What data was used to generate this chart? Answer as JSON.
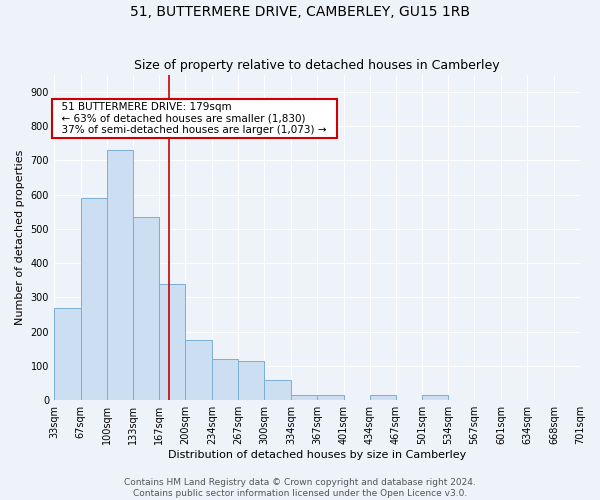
{
  "title": "51, BUTTERMERE DRIVE, CAMBERLEY, GU15 1RB",
  "subtitle": "Size of property relative to detached houses in Camberley",
  "xlabel": "Distribution of detached houses by size in Camberley",
  "ylabel": "Number of detached properties",
  "bin_edges": [
    33,
    67,
    100,
    133,
    167,
    200,
    234,
    267,
    300,
    334,
    367,
    401,
    434,
    467,
    501,
    534,
    567,
    601,
    634,
    668,
    701
  ],
  "bar_heights": [
    270,
    590,
    730,
    535,
    340,
    175,
    120,
    115,
    60,
    15,
    15,
    0,
    15,
    0,
    15,
    0,
    0,
    0,
    0,
    0
  ],
  "bar_color": "#ccdff2",
  "bar_edge_color": "#7bafd4",
  "vline_x": 179,
  "vline_color": "#cc0000",
  "ylim": [
    0,
    950
  ],
  "yticks": [
    0,
    100,
    200,
    300,
    400,
    500,
    600,
    700,
    800,
    900
  ],
  "annotation_text": "  51 BUTTERMERE DRIVE: 179sqm  \n  ← 63% of detached houses are smaller (1,830)  \n  37% of semi-detached houses are larger (1,073) →  ",
  "annotation_box_color": "#ffffff",
  "annotation_box_edge": "#cc0000",
  "footer_text": "Contains HM Land Registry data © Crown copyright and database right 2024.\nContains public sector information licensed under the Open Licence v3.0.",
  "background_color": "#eef2f9",
  "grid_color": "#ffffff",
  "title_fontsize": 10,
  "subtitle_fontsize": 9,
  "axis_label_fontsize": 8,
  "tick_fontsize": 7,
  "annotation_fontsize": 7.5,
  "footer_fontsize": 6.5
}
